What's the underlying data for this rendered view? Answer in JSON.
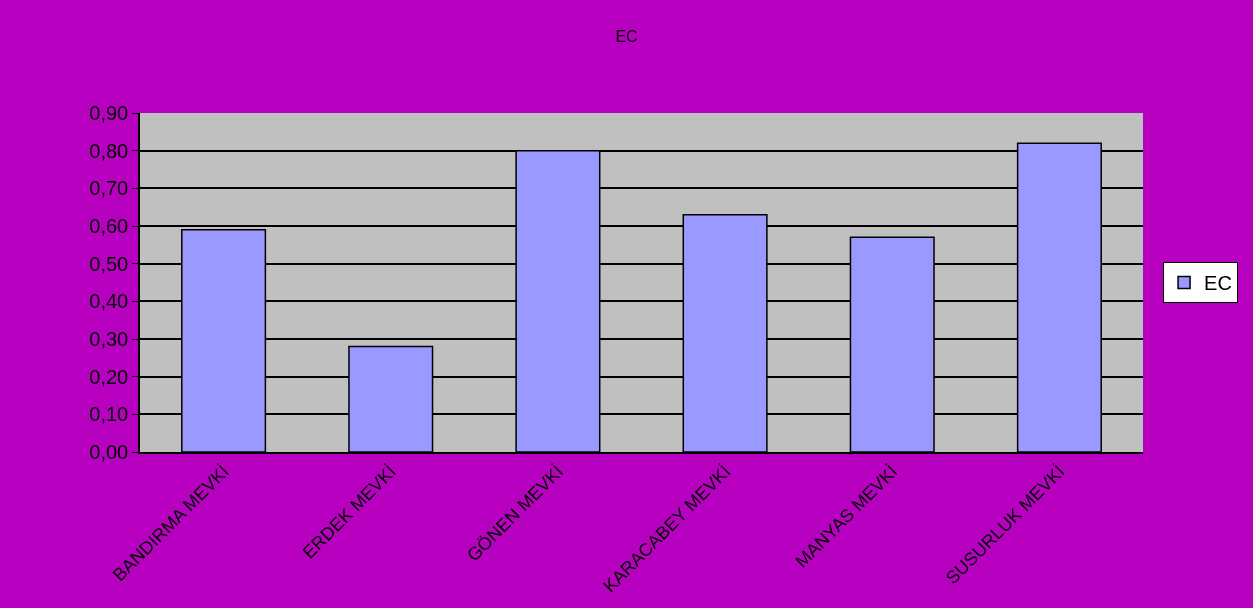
{
  "chart_data": {
    "type": "bar",
    "title": "EC",
    "categories": [
      "BANDIRMA MEVKİ",
      "ERDEK MEVKİ",
      "GÖNEN MEVKİ",
      "KARACABEY MEVKİ",
      "MANYAS MEVKİ",
      "SUSURLUK MEVKİ"
    ],
    "series": [
      {
        "name": "EC",
        "color": "#9999ff",
        "values": [
          0.59,
          0.28,
          0.8,
          0.63,
          0.57,
          0.82
        ]
      }
    ],
    "ylim": [
      0,
      0.9
    ],
    "yticks": [
      {
        "value": 0,
        "label": "0,00"
      },
      {
        "value": 0.1,
        "label": "0,10"
      },
      {
        "value": 0.2,
        "label": "0,20"
      },
      {
        "value": 0.3,
        "label": "0,30"
      },
      {
        "value": 0.4,
        "label": "0,40"
      },
      {
        "value": 0.5,
        "label": "0,50"
      },
      {
        "value": 0.6,
        "label": "0,60"
      },
      {
        "value": 0.7,
        "label": "0,70"
      },
      {
        "value": 0.8,
        "label": "0,80"
      },
      {
        "value": 0.9,
        "label": "0,90"
      }
    ],
    "grid": "y",
    "legend": "right"
  }
}
